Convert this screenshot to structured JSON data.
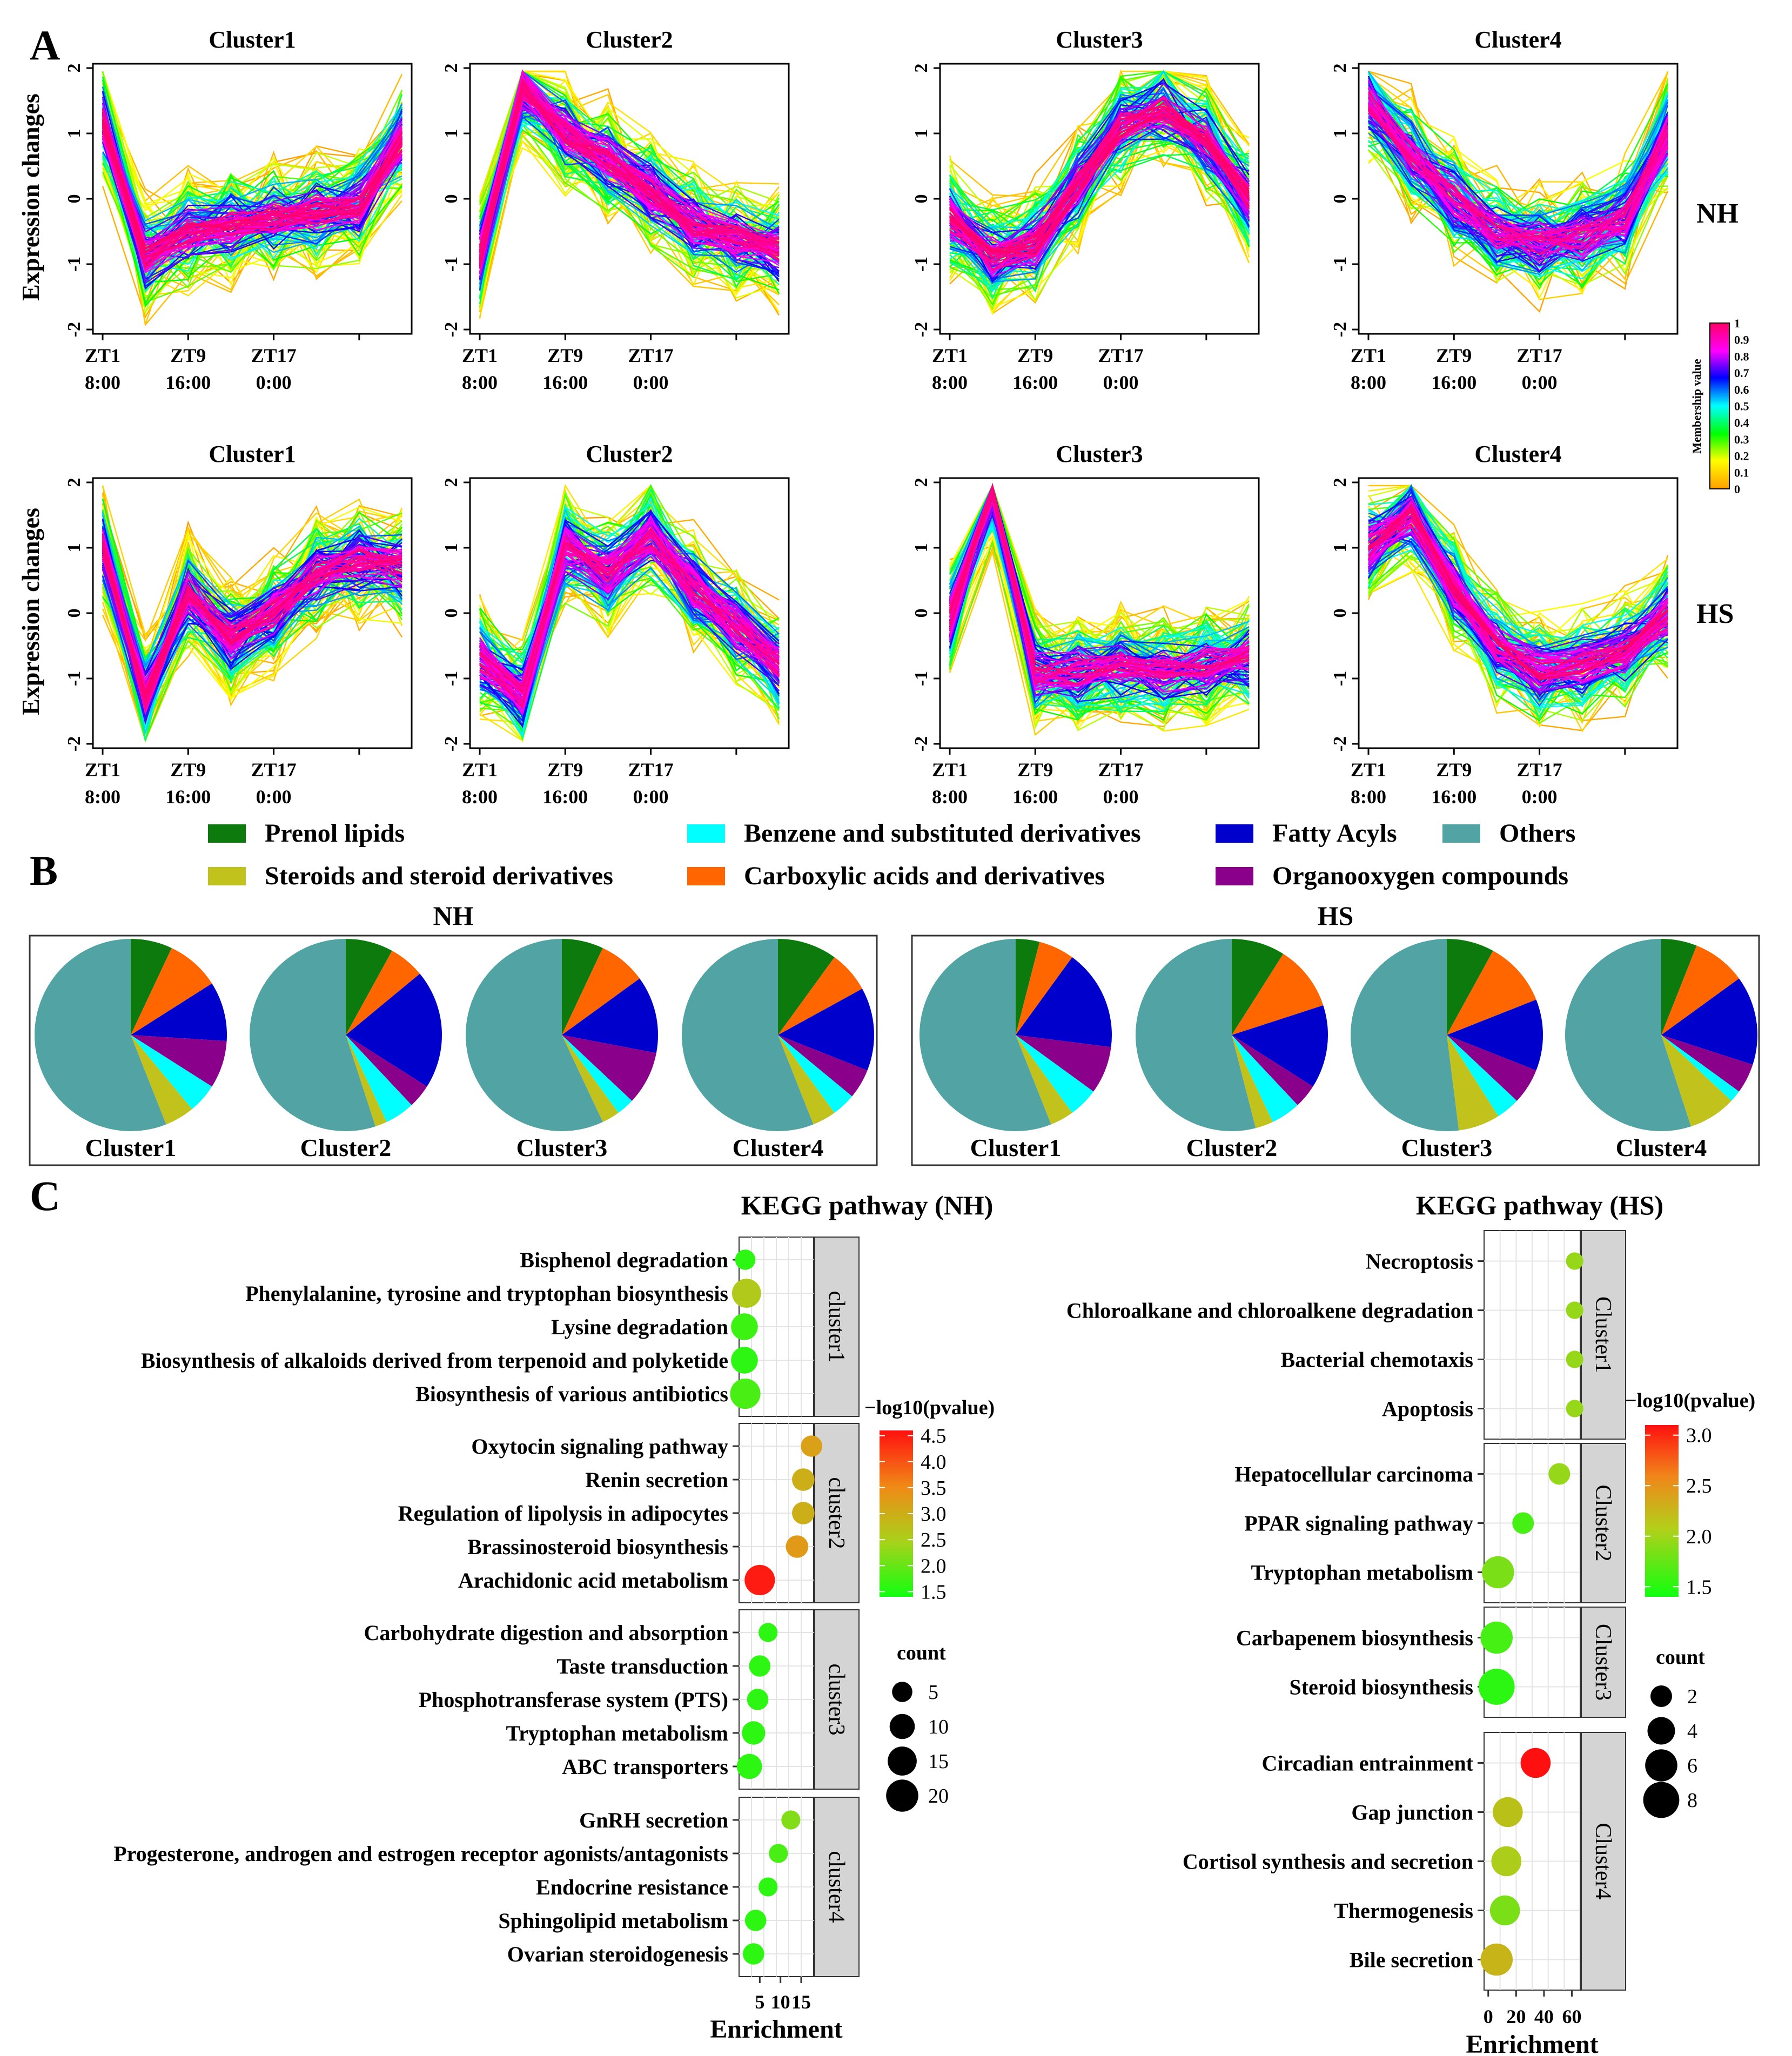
{
  "panel_labels": {
    "a": "A",
    "b": "B",
    "c": "C"
  },
  "panel_a": {
    "ylabel": "Expression changes",
    "row_labels": [
      "NH",
      "HS"
    ],
    "yticks": [
      "2",
      "1",
      "0",
      "-1",
      "-2"
    ],
    "xticks_top": [
      "ZT1",
      "ZT9",
      "ZT17"
    ],
    "xticks_bottom": [
      "8:00",
      "16:00",
      "0:00"
    ],
    "colorbar": {
      "title": "Membership value",
      "ticks": [
        "1",
        "0.9",
        "0.8",
        "0.7",
        "0.6",
        "0.5",
        "0.4",
        "0.3",
        "0.2",
        "0.1",
        "0"
      ],
      "colors": [
        "#ff9f00",
        "#ffff00",
        "#00ff00",
        "#00ffff",
        "#0000ff",
        "#ff00ff",
        "#ff0066"
      ]
    },
    "clusters": [
      {
        "title": "Cluster1",
        "row": "NH",
        "col": 0,
        "profile": [
          1.2,
          -0.9,
          -0.5,
          -0.4,
          -0.3,
          -0.2,
          -0.1,
          0.9
        ]
      },
      {
        "title": "Cluster2",
        "row": "NH",
        "col": 1,
        "profile": [
          -0.9,
          1.7,
          1.0,
          0.6,
          0.1,
          -0.4,
          -0.6,
          -0.8
        ]
      },
      {
        "title": "Cluster3",
        "row": "NH",
        "col": 2,
        "profile": [
          -0.3,
          -0.9,
          -0.7,
          0.2,
          1.1,
          1.4,
          0.9,
          0.0
        ]
      },
      {
        "title": "Cluster4",
        "row": "NH",
        "col": 3,
        "profile": [
          1.5,
          0.7,
          0.0,
          -0.5,
          -0.7,
          -0.6,
          -0.3,
          1.0
        ]
      },
      {
        "title": "Cluster1",
        "row": "HS",
        "col": 0,
        "profile": [
          1.0,
          -1.3,
          0.3,
          -0.4,
          0.0,
          0.6,
          0.8,
          0.7
        ]
      },
      {
        "title": "Cluster2",
        "row": "HS",
        "col": 1,
        "profile": [
          -0.7,
          -1.3,
          1.0,
          0.6,
          1.2,
          0.4,
          -0.2,
          -0.8
        ]
      },
      {
        "title": "Cluster3",
        "row": "HS",
        "col": 2,
        "profile": [
          -0.1,
          1.9,
          -0.9,
          -0.9,
          -0.8,
          -0.9,
          -0.8,
          -0.7
        ]
      },
      {
        "title": "Cluster4",
        "row": "HS",
        "col": 3,
        "profile": [
          1.0,
          1.5,
          0.4,
          -0.5,
          -0.9,
          -0.8,
          -0.6,
          0.0
        ]
      }
    ]
  },
  "panel_b": {
    "legend": [
      {
        "label": "Prenol lipids",
        "color": "#0c7a0c"
      },
      {
        "label": "Benzene and substituted derivatives",
        "color": "#00ffff"
      },
      {
        "label": "Fatty Acyls",
        "color": "#0000cc"
      },
      {
        "label": "Others",
        "color": "#52a3a3"
      },
      {
        "label": "Steroids and steroid derivatives",
        "color": "#c2c21c"
      },
      {
        "label": "Carboxylic acids and derivatives",
        "color": "#ff6600"
      },
      {
        "label": "Organooxygen compounds",
        "color": "#8b008b"
      }
    ],
    "pie_order": [
      "Prenol lipids",
      "Carboxylic acids and derivatives",
      "Fatty Acyls",
      "Organooxygen compounds",
      "Benzene and substituted derivatives",
      "Steroids and steroid derivatives",
      "Others"
    ],
    "groups": [
      {
        "title": "NH",
        "pies": [
          {
            "label": "Cluster1",
            "values": [
              7,
              9,
              10,
              8,
              5,
              5,
              56
            ]
          },
          {
            "label": "Cluster2",
            "values": [
              8,
              6,
              20,
              4,
              5,
              2,
              55
            ]
          },
          {
            "label": "Cluster3",
            "values": [
              7,
              8,
              13,
              9,
              3,
              3,
              57
            ]
          },
          {
            "label": "Cluster4",
            "values": [
              10,
              7,
              14,
              5,
              4,
              4,
              56
            ]
          }
        ]
      },
      {
        "title": "HS",
        "pies": [
          {
            "label": "Cluster1",
            "values": [
              4,
              6,
              17,
              8,
              5,
              4,
              56
            ]
          },
          {
            "label": "Cluster2",
            "values": [
              9,
              11,
              14,
              4,
              5,
              3,
              54
            ]
          },
          {
            "label": "Cluster3",
            "values": [
              8,
              11,
              12,
              6,
              4,
              7,
              52
            ]
          },
          {
            "label": "Cluster4",
            "values": [
              6,
              9,
              15,
              5,
              2,
              8,
              55
            ]
          }
        ]
      }
    ]
  },
  "chart_data": [
    {
      "type": "scatter",
      "title": "KEGG pathway (NH)",
      "xlabel": "Enrichment",
      "xlim": [
        0,
        18
      ],
      "xticks": [
        "5",
        "10",
        "15"
      ],
      "color_title": "−log10(pvalue)",
      "color_ticks": [
        "4.5",
        "4.0",
        "3.5",
        "3.0",
        "2.5",
        "2.0",
        "1.5"
      ],
      "color_range": [
        1.4,
        4.6
      ],
      "size_title": "count",
      "size_ticks": [
        "5",
        "10",
        "15",
        "20"
      ],
      "facets": [
        {
          "name": "cluster1",
          "items": [
            {
              "term": "Bisphenol degradation",
              "enrichment": 1.5,
              "count": 5,
              "p": 1.6
            },
            {
              "term": "Phenylalanine, tyrosine and tryptophan biosynthesis",
              "enrichment": 1.8,
              "count": 15,
              "p": 2.6
            },
            {
              "term": "Lysine degradation",
              "enrichment": 1.3,
              "count": 12,
              "p": 1.7
            },
            {
              "term": "Biosynthesis of alkaloids derived from terpenoid and polyketide",
              "enrichment": 1.3,
              "count": 12,
              "p": 1.6
            },
            {
              "term": "Biosynthesis of various antibiotics",
              "enrichment": 1.5,
              "count": 17,
              "p": 1.8
            }
          ]
        },
        {
          "name": "cluster2",
          "items": [
            {
              "term": "Oxytocin signaling pathway",
              "enrichment": 17.5,
              "count": 6,
              "p": 3.2
            },
            {
              "term": "Renin secretion",
              "enrichment": 15.5,
              "count": 7,
              "p": 3.0
            },
            {
              "term": "Regulation of lipolysis in adipocytes",
              "enrichment": 15.5,
              "count": 7,
              "p": 3.0
            },
            {
              "term": "Brassinosteroid biosynthesis",
              "enrichment": 14.0,
              "count": 7,
              "p": 3.3
            },
            {
              "term": "Arachidonic acid metabolism",
              "enrichment": 5.0,
              "count": 17,
              "p": 4.5
            }
          ]
        },
        {
          "name": "cluster3",
          "items": [
            {
              "term": "Carbohydrate digestion and absorption",
              "enrichment": 7.0,
              "count": 4,
              "p": 1.6
            },
            {
              "term": "Taste transduction",
              "enrichment": 5.0,
              "count": 6,
              "p": 1.6
            },
            {
              "term": "Phosphotransferase system (PTS)",
              "enrichment": 4.5,
              "count": 6,
              "p": 1.6
            },
            {
              "term": "Tryptophan metabolism",
              "enrichment": 3.5,
              "count": 8,
              "p": 1.6
            },
            {
              "term": "ABC transporters",
              "enrichment": 2.5,
              "count": 10,
              "p": 1.6
            }
          ]
        },
        {
          "name": "cluster4",
          "items": [
            {
              "term": "GnRH secretion",
              "enrichment": 12.5,
              "count": 4,
              "p": 2.2
            },
            {
              "term": "Progesterone, androgen and estrogen receptor agonists/antagonists",
              "enrichment": 9.5,
              "count": 4,
              "p": 1.8
            },
            {
              "term": "Endocrine resistance",
              "enrichment": 7.0,
              "count": 4,
              "p": 1.6
            },
            {
              "term": "Sphingolipid metabolism",
              "enrichment": 4.0,
              "count": 6,
              "p": 1.6
            },
            {
              "term": "Ovarian steroidogenesis",
              "enrichment": 3.5,
              "count": 6,
              "p": 1.6
            }
          ]
        }
      ]
    },
    {
      "type": "scatter",
      "title": "KEGG pathway (HS)",
      "xlabel": "Enrichment",
      "xlim": [
        -3,
        66
      ],
      "xticks": [
        "0",
        "20",
        "40",
        "60"
      ],
      "color_title": "−log10(pvalue)",
      "color_ticks": [
        "3.0",
        "2.5",
        "2.0",
        "1.5"
      ],
      "color_range": [
        1.4,
        3.1
      ],
      "size_title": "count",
      "size_ticks": [
        "2",
        "4",
        "6",
        "8"
      ],
      "facets": [
        {
          "name": "Cluster1",
          "items": [
            {
              "term": "Necroptosis",
              "enrichment": 62,
              "count": 1,
              "p": 1.9
            },
            {
              "term": "Chloroalkane and chloroalkene degradation",
              "enrichment": 62,
              "count": 1,
              "p": 1.9
            },
            {
              "term": "Bacterial chemotaxis",
              "enrichment": 62,
              "count": 1,
              "p": 1.9
            },
            {
              "term": "Apoptosis",
              "enrichment": 62,
              "count": 1,
              "p": 1.9
            }
          ]
        },
        {
          "name": "Cluster2",
          "items": [
            {
              "term": "Hepatocellular carcinoma",
              "enrichment": 51,
              "count": 2,
              "p": 1.9
            },
            {
              "term": "PPAR signaling pathway",
              "enrichment": 25,
              "count": 2,
              "p": 1.6
            },
            {
              "term": "Tryptophan metabolism",
              "enrichment": 7,
              "count": 6,
              "p": 1.8
            }
          ]
        },
        {
          "name": "Cluster3",
          "items": [
            {
              "term": "Carbapenem biosynthesis",
              "enrichment": 6,
              "count": 6,
              "p": 1.6
            },
            {
              "term": "Steroid biosynthesis",
              "enrichment": 6,
              "count": 8,
              "p": 1.5
            }
          ]
        },
        {
          "name": "Cluster4",
          "items": [
            {
              "term": "Circadian entrainment",
              "enrichment": 34,
              "count": 5,
              "p": 3.1
            },
            {
              "term": "Gap junction",
              "enrichment": 14,
              "count": 5,
              "p": 2.1
            },
            {
              "term": "Cortisol synthesis and secretion",
              "enrichment": 13,
              "count": 5,
              "p": 2.0
            },
            {
              "term": "Thermogenesis",
              "enrichment": 12,
              "count": 5,
              "p": 1.8
            },
            {
              "term": "Bile secretion",
              "enrichment": 6,
              "count": 6,
              "p": 2.2
            }
          ]
        }
      ]
    }
  ]
}
